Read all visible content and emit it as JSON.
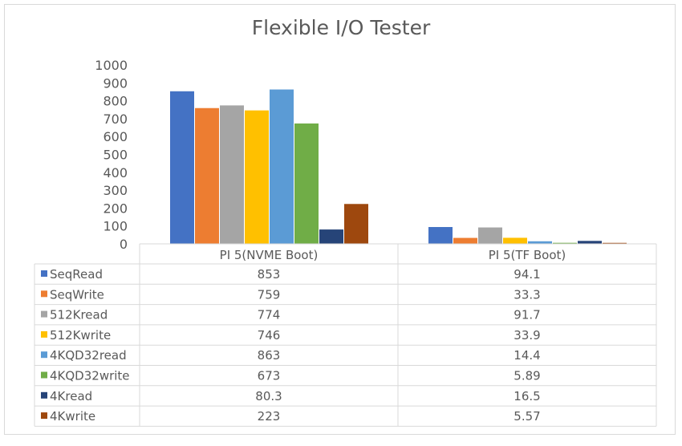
{
  "chart_data": {
    "type": "bar",
    "title": "Flexible I/O Tester",
    "categories": [
      "PI 5(NVME Boot)",
      "PI 5(TF Boot)"
    ],
    "ylim": [
      0,
      1000
    ],
    "yticks": [
      0,
      100,
      200,
      300,
      400,
      500,
      600,
      700,
      800,
      900,
      1000
    ],
    "grid": false,
    "legend": "data-table",
    "series": [
      {
        "name": "SeqRead",
        "color": "#4472c4",
        "values": [
          853,
          94.1
        ],
        "labels": [
          "853",
          "94.1"
        ]
      },
      {
        "name": "SeqWrite",
        "color": "#ed7d31",
        "values": [
          759,
          33.3
        ],
        "labels": [
          "759",
          "33.3"
        ]
      },
      {
        "name": "512Kread",
        "color": "#a5a5a5",
        "values": [
          774,
          91.7
        ],
        "labels": [
          "774",
          "91.7"
        ]
      },
      {
        "name": "512Kwrite",
        "color": "#ffc000",
        "values": [
          746,
          33.9
        ],
        "labels": [
          "746",
          "33.9"
        ]
      },
      {
        "name": "4KQD32read",
        "color": "#5b9bd5",
        "values": [
          863,
          14.4
        ],
        "labels": [
          "863",
          "14.4"
        ]
      },
      {
        "name": "4KQD32write",
        "color": "#70ad47",
        "values": [
          673,
          5.89
        ],
        "labels": [
          "673",
          "5.89"
        ]
      },
      {
        "name": "4Kread",
        "color": "#264478",
        "values": [
          80.3,
          16.5
        ],
        "labels": [
          "80.3",
          "16.5"
        ]
      },
      {
        "name": "4Kwrite",
        "color": "#9e480e",
        "values": [
          223,
          5.57
        ],
        "labels": [
          "223",
          "5.57"
        ]
      }
    ]
  }
}
